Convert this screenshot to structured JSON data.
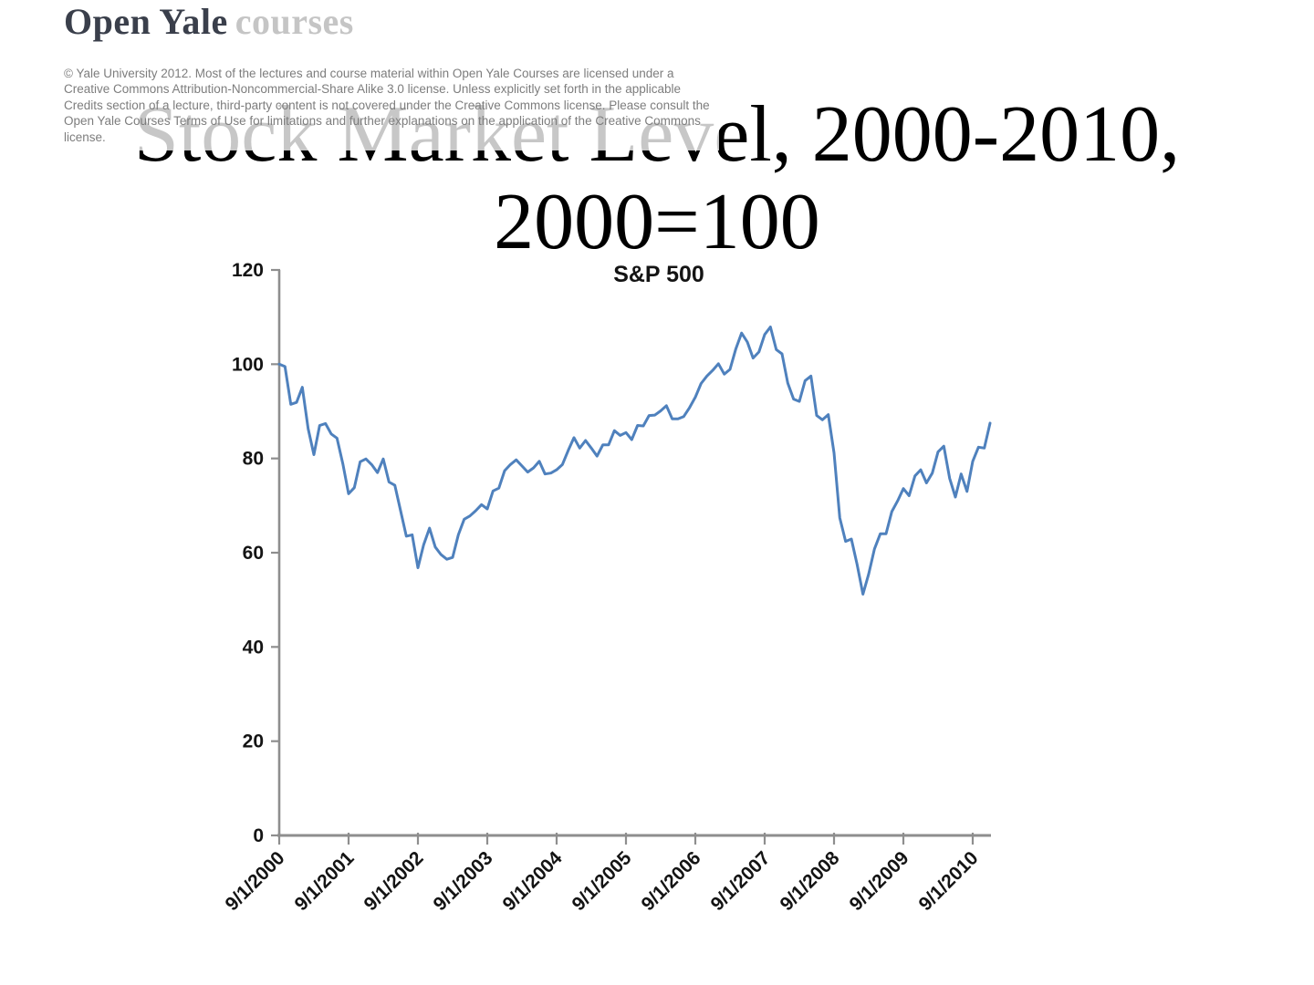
{
  "logo": {
    "primary": "Open Yale",
    "secondary": "courses"
  },
  "copyright": {
    "text": "© Yale University 2012. Most of the lectures and course material within Open Yale Courses are licensed under a Creative Commons Attribution-Noncommercial-Share Alike 3.0 license. Unless explicitly set forth in the applicable Credits section of a lecture, third-party content is not covered under the Creative Commons license. Please consult the Open Yale Courses Terms of Use for limitations and further explanations on the application of the Creative Commons license."
  },
  "title": {
    "line1": "Stock Market Level, 2000-2010,",
    "line2": "2000=100"
  },
  "colors": {
    "line": "#4F81BD",
    "axis": "#8e8e8e",
    "tick_label": "#141414",
    "logo_primary": "#3a3f4b",
    "logo_secondary": "#c5c5c5",
    "copyright_text": "#7d7d7d",
    "title_text": "#000000"
  },
  "chart_data": {
    "type": "line",
    "title": "S&P 500",
    "series_name": "S&P 500",
    "x_start": "9/1/2000",
    "x_frequency": "monthly",
    "x_tick_labels": [
      "9/1/2000",
      "9/1/2001",
      "9/1/2002",
      "9/1/2003",
      "9/1/2004",
      "9/1/2005",
      "9/1/2006",
      "9/1/2007",
      "9/1/2008",
      "9/1/2009",
      "9/1/2010"
    ],
    "y_ticks": [
      0,
      20,
      40,
      60,
      80,
      100,
      120
    ],
    "ylim": [
      0,
      120
    ],
    "grid": false,
    "legend": "none",
    "line_color": "#4F81BD",
    "values": [
      100.0,
      99.5,
      91.5,
      91.9,
      95.1,
      86.3,
      80.8,
      87.0,
      87.4,
      85.2,
      84.3,
      78.9,
      72.5,
      73.8,
      79.3,
      79.9,
      78.7,
      77.0,
      79.9,
      75.0,
      74.3,
      68.9,
      63.5,
      63.8,
      56.8,
      61.7,
      65.2,
      61.2,
      59.6,
      58.6,
      59.0,
      63.8,
      67.1,
      67.8,
      68.9,
      70.2,
      69.3,
      73.1,
      73.7,
      77.4,
      78.7,
      79.7,
      78.4,
      77.1,
      78.0,
      79.4,
      76.7,
      76.9,
      77.6,
      78.7,
      81.7,
      84.4,
      82.2,
      83.8,
      82.2,
      80.5,
      82.9,
      82.9,
      85.9,
      84.9,
      85.5,
      84.0,
      87.0,
      86.9,
      89.1,
      89.2,
      90.1,
      91.2,
      88.4,
      88.4,
      88.9,
      90.8,
      93.0,
      95.9,
      97.5,
      98.7,
      100.1,
      97.9,
      98.9,
      103.2,
      106.6,
      104.7,
      101.3,
      102.6,
      106.3,
      107.9,
      103.1,
      102.2,
      96.0,
      92.6,
      92.1,
      96.5,
      97.5,
      89.1,
      88.2,
      89.3,
      81.2,
      67.4,
      62.4,
      62.9,
      57.5,
      51.2,
      55.5,
      60.8,
      64.0,
      64.0,
      68.7,
      71.0,
      73.6,
      72.1,
      76.3,
      77.6,
      74.8,
      76.9,
      81.4,
      82.6,
      75.8,
      71.8,
      76.7,
      73.0,
      79.4,
      82.4,
      82.2,
      87.5
    ]
  }
}
